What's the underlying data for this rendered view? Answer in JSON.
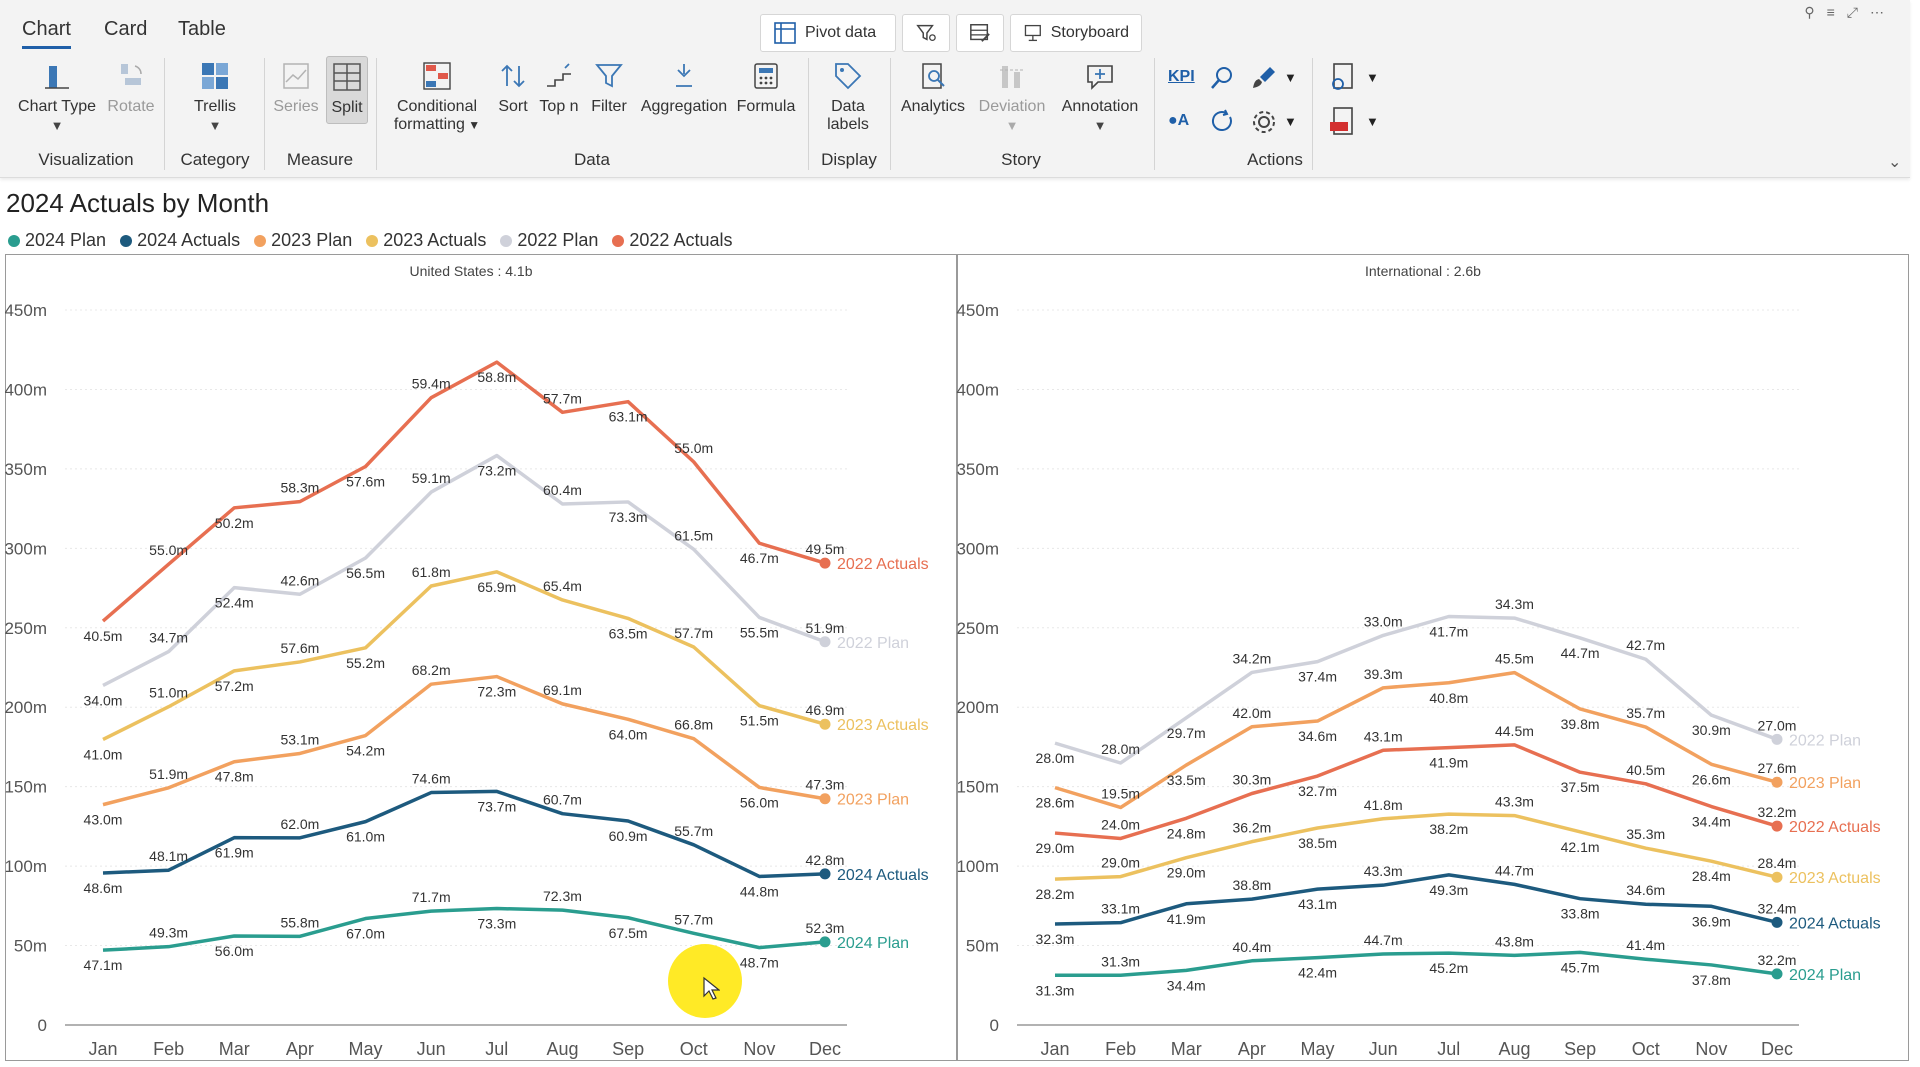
{
  "tabs": [
    {
      "label": "Chart",
      "active": true
    },
    {
      "label": "Card"
    },
    {
      "label": "Table"
    }
  ],
  "top_buttons": {
    "pivot": "Pivot data",
    "storyboard": "Storyboard"
  },
  "ribbon": {
    "chart_type": "Chart Type",
    "rotate": "Rotate",
    "trellis": "Trellis",
    "series": "Series",
    "split": "Split",
    "conditional_1": "Conditional",
    "conditional_2": "formatting",
    "sort": "Sort",
    "top_n": "Top n",
    "filter": "Filter",
    "aggregation": "Aggregation",
    "formula": "Formula",
    "data_labels_1": "Data",
    "data_labels_2": "labels",
    "analytics": "Analytics",
    "deviation": "Deviation",
    "annotation": "Annotation",
    "kpi": "KPI",
    "ia": "A"
  },
  "groups": {
    "visualization": "Visualization",
    "category": "Category",
    "measure": "Measure",
    "data": "Data",
    "display": "Display",
    "story": "Story",
    "actions": "Actions"
  },
  "title": "2024 Actuals by Month",
  "colors": {
    "2024 Plan": "#2a9d8f",
    "2024 Actuals": "#1d5a7e",
    "2023 Plan": "#f2a15f",
    "2023 Actuals": "#ecc15f",
    "2022 Plan": "#cfd1da",
    "2022 Actuals": "#e76f51"
  },
  "chart_data": [
    {
      "type": "line",
      "title": "United States : 4.1b",
      "categories": [
        "Jan",
        "Feb",
        "Mar",
        "Apr",
        "May",
        "Jun",
        "Jul",
        "Aug",
        "Sep",
        "Oct",
        "Nov",
        "Dec"
      ],
      "ylim": [
        0,
        450
      ],
      "yticks": [
        0,
        50,
        100,
        150,
        200,
        250,
        300,
        350,
        400,
        450
      ],
      "ytick_labels": [
        "0",
        "50m",
        "100m",
        "150m",
        "200m",
        "250m",
        "300m",
        "350m",
        "400m",
        "450m"
      ],
      "legend": [
        "2024 Plan",
        "2024 Actuals",
        "2023 Plan",
        "2023 Actuals",
        "2022 Plan",
        "2022 Actuals"
      ],
      "legend_position": "top-left",
      "stacked": true,
      "series": [
        {
          "name": "2024 Plan",
          "values": [
            47.1,
            49.3,
            56.0,
            55.8,
            67.0,
            71.7,
            73.3,
            72.3,
            67.5,
            57.7,
            48.7,
            52.3
          ],
          "labels": [
            "47.1m",
            "49.3m",
            "56.0m",
            "55.8m",
            "67.0m",
            "71.7m",
            "73.3m",
            "72.3m",
            "67.5m",
            "57.7m",
            "48.7m",
            "52.3m"
          ]
        },
        {
          "name": "2024 Actuals",
          "values": [
            48.6,
            48.1,
            61.9,
            62.0,
            61.0,
            74.6,
            73.7,
            60.7,
            60.9,
            55.7,
            44.8,
            42.8
          ],
          "labels": [
            "48.6m",
            "48.1m",
            "61.9m",
            "62.0m",
            "61.0m",
            "74.6m",
            "73.7m",
            "60.7m",
            "60.9m",
            "55.7m",
            "44.8m",
            "42.8m"
          ]
        },
        {
          "name": "2023 Plan",
          "values": [
            43.0,
            51.9,
            47.8,
            53.1,
            54.2,
            68.2,
            72.3,
            69.1,
            64.0,
            66.8,
            56.0,
            47.3
          ],
          "labels": [
            "43.0m",
            "51.9m",
            "47.8m",
            "53.1m",
            "54.2m",
            "68.2m",
            "72.3m",
            "69.1m",
            "64.0m",
            "66.8m",
            "56.0m",
            "47.3m"
          ]
        },
        {
          "name": "2023 Actuals",
          "values": [
            41.0,
            51.0,
            57.2,
            57.6,
            55.2,
            61.8,
            65.9,
            65.4,
            63.5,
            57.7,
            51.5,
            46.9
          ],
          "labels": [
            "41.0m",
            "51.0m",
            "57.2m",
            "57.6m",
            "55.2m",
            "61.8m",
            "65.9m",
            "65.4m",
            "63.5m",
            "57.7m",
            "51.5m",
            "46.9m"
          ]
        },
        {
          "name": "2022 Plan",
          "values": [
            34.0,
            34.7,
            52.4,
            42.6,
            56.5,
            59.1,
            73.2,
            60.4,
            73.3,
            61.5,
            55.5,
            51.9
          ],
          "labels": [
            "34.0m",
            "34.7m",
            "52.4m",
            "42.6m",
            "56.5m",
            "59.1m",
            "73.2m",
            "60.4m",
            "73.3m",
            "61.5m",
            "55.5m",
            "51.9m"
          ]
        },
        {
          "name": "2022 Actuals",
          "values": [
            40.5,
            55.0,
            50.2,
            58.3,
            57.6,
            59.4,
            58.8,
            57.7,
            63.1,
            55.0,
            46.7,
            49.5
          ],
          "labels": [
            "40.5m",
            "55.0m",
            "50.2m",
            "58.3m",
            "57.6m",
            "59.4m",
            "58.8m",
            "57.7m",
            "63.1m",
            "55.0m",
            "46.7m",
            "49.5m"
          ]
        }
      ]
    },
    {
      "type": "line",
      "title": "International : 2.6b",
      "categories": [
        "Jan",
        "Feb",
        "Mar",
        "Apr",
        "May",
        "Jun",
        "Jul",
        "Aug",
        "Sep",
        "Oct",
        "Nov",
        "Dec"
      ],
      "ylim": [
        0,
        450
      ],
      "yticks": [
        0,
        50,
        100,
        150,
        200,
        250,
        300,
        350,
        400,
        450
      ],
      "ytick_labels": [
        "0",
        "50m",
        "100m",
        "150m",
        "200m",
        "250m",
        "300m",
        "350m",
        "400m",
        "450m"
      ],
      "stacked": true,
      "series": [
        {
          "name": "2024 Plan",
          "values": [
            31.3,
            31.3,
            34.4,
            40.4,
            42.4,
            44.7,
            45.2,
            43.8,
            45.7,
            41.4,
            37.8,
            32.2
          ],
          "labels": [
            "31.3m",
            "31.3m",
            "34.4m",
            "40.4m",
            "42.4m",
            "44.7m",
            "45.2m",
            "43.8m",
            "45.7m",
            "41.4m",
            "37.8m",
            "32.2m"
          ]
        },
        {
          "name": "2024 Actuals",
          "values": [
            32.3,
            33.1,
            41.9,
            38.8,
            43.1,
            43.3,
            49.3,
            44.7,
            33.8,
            34.6,
            36.9,
            32.4
          ],
          "labels": [
            "32.3m",
            "33.1m",
            "41.9m",
            "38.8m",
            "43.1m",
            "43.3m",
            "49.3m",
            "44.7m",
            "33.8m",
            "34.6m",
            "36.9m",
            "32.4m"
          ]
        },
        {
          "name": "2023 Actuals",
          "values": [
            28.2,
            29.0,
            29.0,
            36.2,
            38.5,
            41.8,
            38.2,
            43.3,
            42.1,
            35.3,
            28.4,
            28.4
          ],
          "labels": [
            "28.2m",
            "29.0m",
            "29.0m",
            "36.2m",
            "38.5m",
            "41.8m",
            "38.2m",
            "43.3m",
            "42.1m",
            "35.3m",
            "28.4m",
            "28.4m"
          ]
        },
        {
          "name": "2022 Actuals",
          "values": [
            29.0,
            24.0,
            24.8,
            30.3,
            32.7,
            43.1,
            41.9,
            44.5,
            37.5,
            40.5,
            34.4,
            32.2
          ],
          "labels": [
            "29.0m",
            "24.0m",
            "24.8m",
            "30.3m",
            "32.7m",
            "43.1m",
            "41.9m",
            "44.5m",
            "37.5m",
            "40.5m",
            "34.4m",
            "32.2m"
          ]
        },
        {
          "name": "2023 Plan",
          "values": [
            28.6,
            19.5,
            33.5,
            42.0,
            34.6,
            39.3,
            40.8,
            45.5,
            39.8,
            35.7,
            26.6,
            27.6
          ],
          "labels": [
            "28.6m",
            "19.5m",
            "33.5m",
            "42.0m",
            "34.6m",
            "39.3m",
            "40.8m",
            "45.5m",
            "39.8m",
            "35.7m",
            "26.6m",
            "27.6m"
          ]
        },
        {
          "name": "2022 Plan",
          "values": [
            28.0,
            28.0,
            29.7,
            34.2,
            37.4,
            33.0,
            41.7,
            34.3,
            44.7,
            42.7,
            30.9,
            27.0
          ],
          "labels": [
            "28.0m",
            "28.0m",
            "29.7m",
            "34.2m",
            "37.4m",
            "33.0m",
            "41.7m",
            "34.3m",
            "44.7m",
            "42.7m",
            "30.9m",
            "27.0m"
          ]
        }
      ]
    }
  ]
}
